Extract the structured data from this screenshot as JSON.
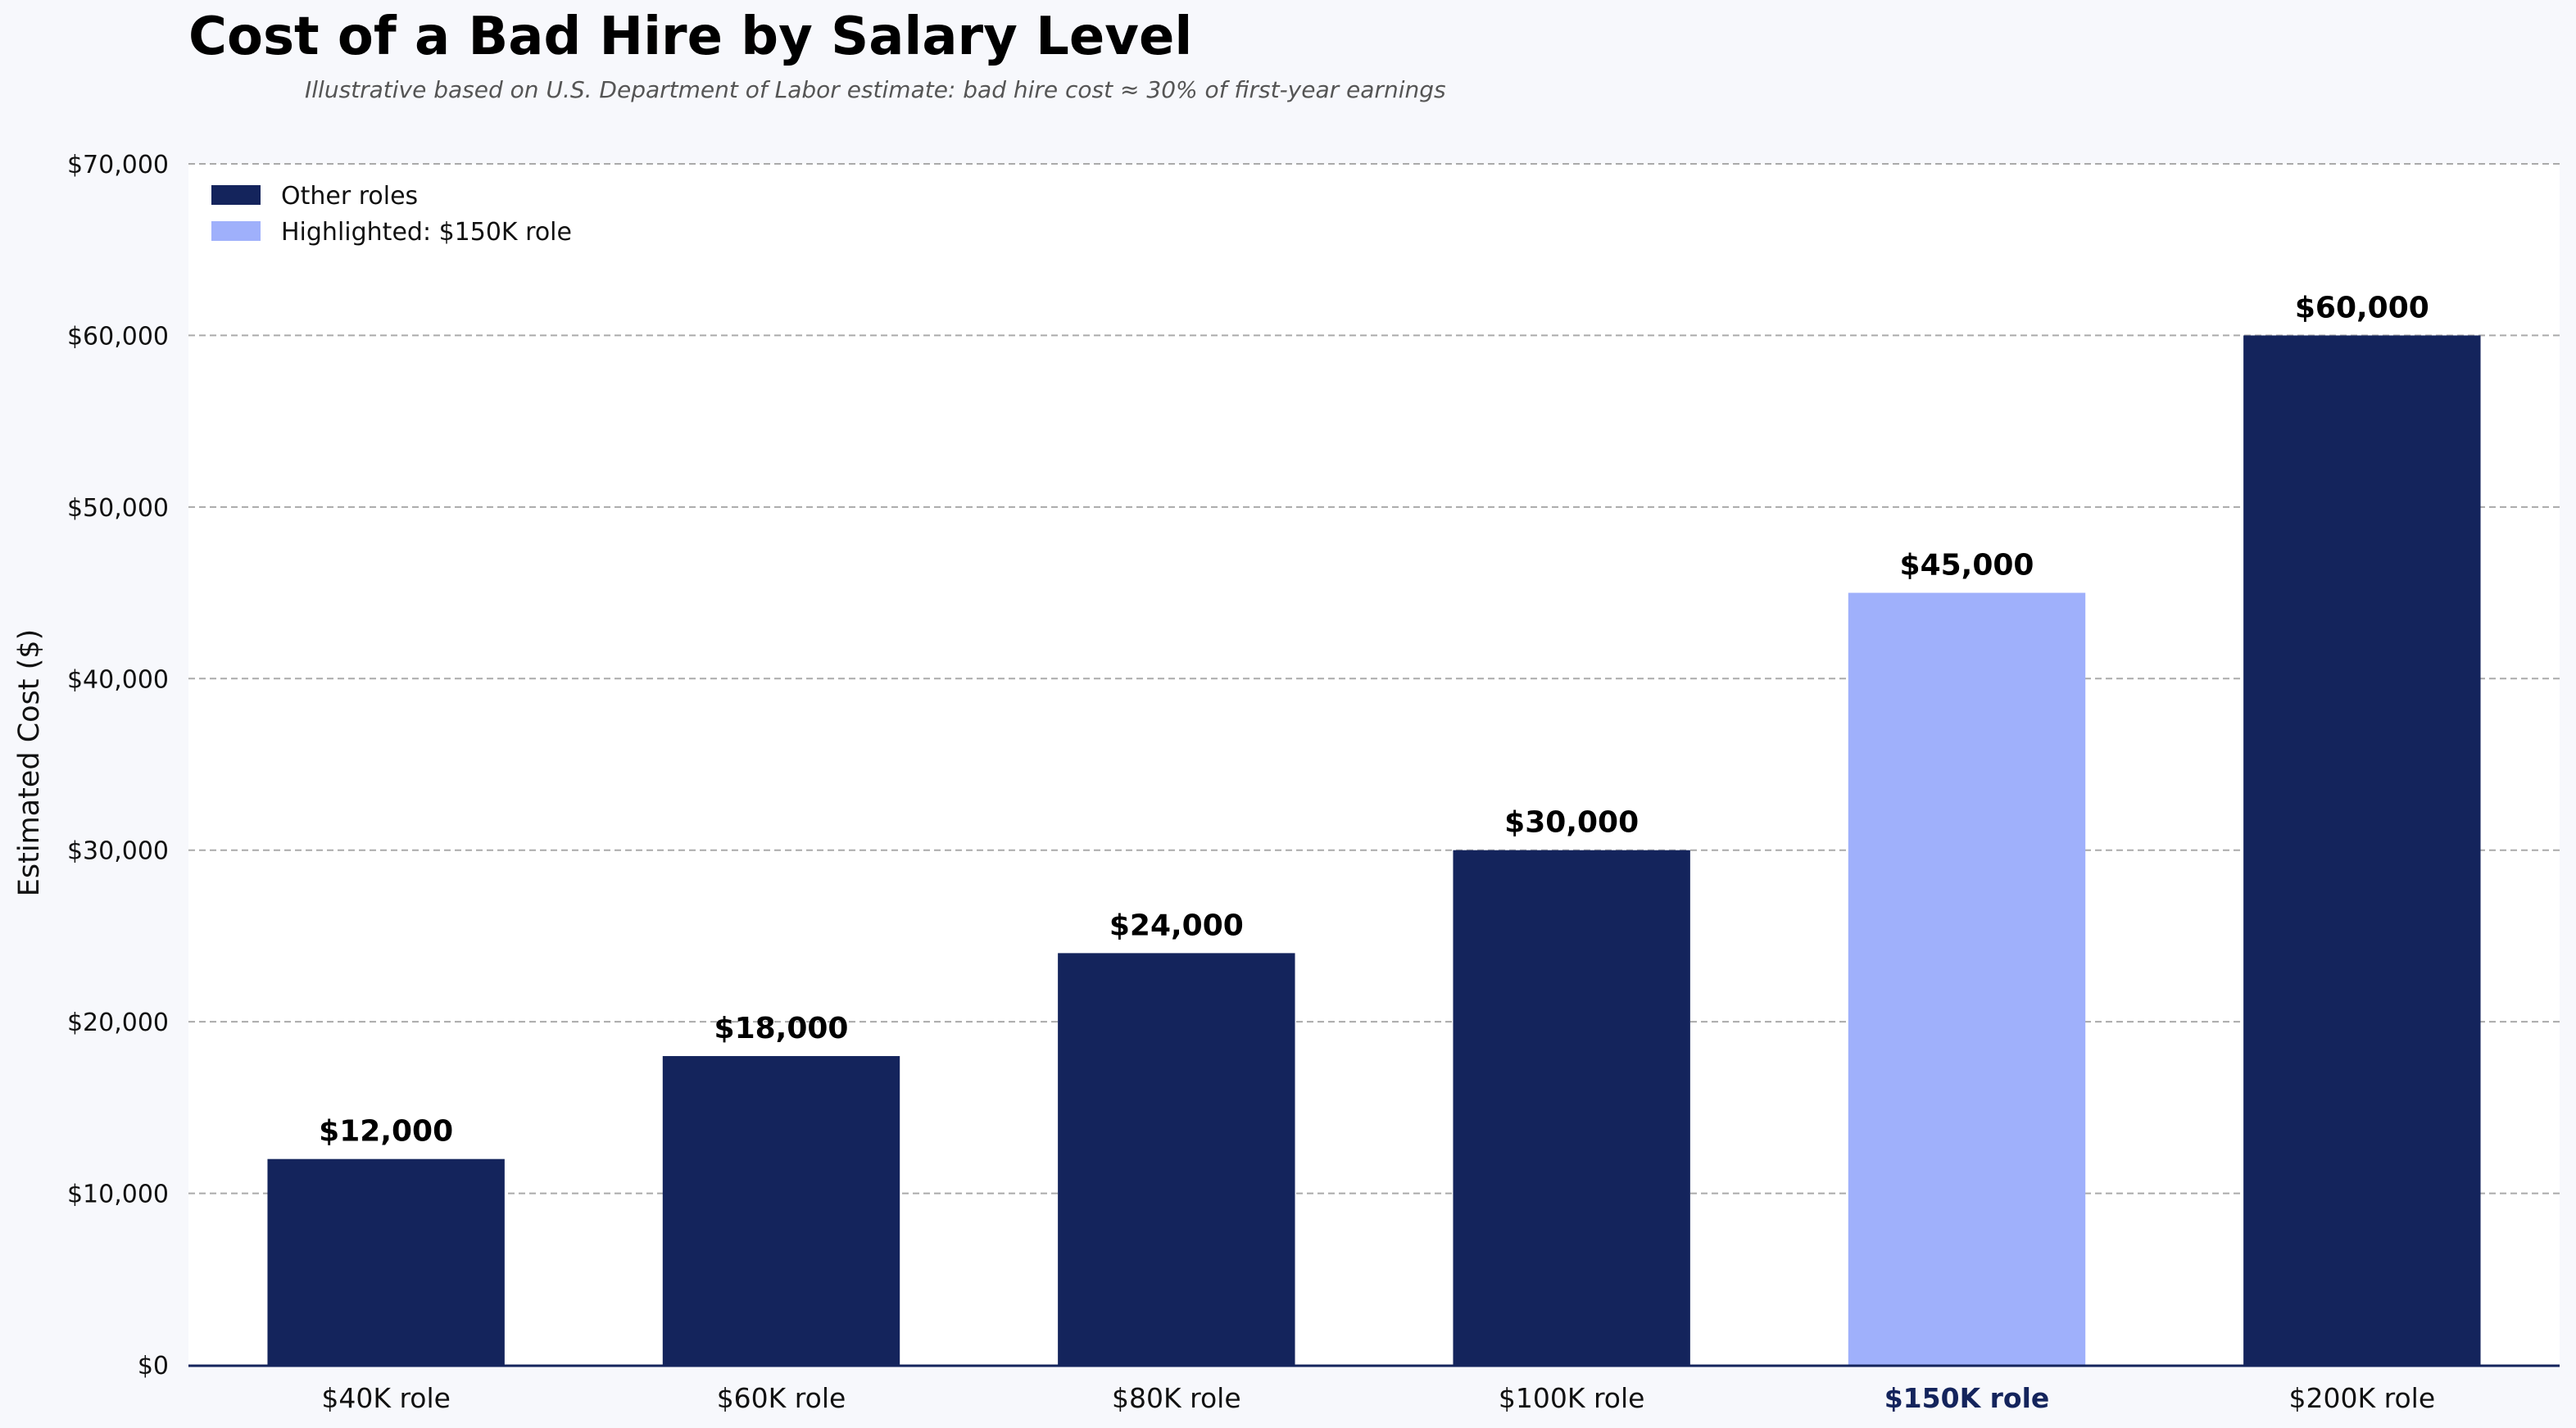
{
  "colors": {
    "page_background": "#f7f8fc",
    "plot_background": "#ffffff",
    "bar_default": "#14245c",
    "bar_highlight": "#9fb0fb",
    "grid": "#aaaaaa",
    "axis": "#14245c",
    "highlight_tick": "#14245c"
  },
  "chart_data": {
    "type": "bar",
    "title": "Cost of a Bad Hire by Salary Level",
    "subtitle": "Illustrative based on U.S. Department of Labor estimate: bad hire cost ≈ 30% of first-year earnings",
    "xlabel": "",
    "ylabel": "Estimated Cost ($)",
    "categories": [
      "$40K role",
      "$60K role",
      "$80K role",
      "$100K role",
      "$150K role",
      "$200K role"
    ],
    "values": [
      12000,
      18000,
      24000,
      30000,
      45000,
      60000
    ],
    "value_labels": [
      "$12,000",
      "$18,000",
      "$24,000",
      "$30,000",
      "$45,000",
      "$60,000"
    ],
    "highlight_index": 4,
    "ylim": [
      0,
      70000
    ],
    "yticks": [
      0,
      10000,
      20000,
      30000,
      40000,
      50000,
      60000,
      70000
    ],
    "ytick_labels": [
      "$0",
      "$10,000",
      "$20,000",
      "$30,000",
      "$40,000",
      "$50,000",
      "$60,000",
      "$70,000"
    ],
    "grid": true,
    "legend_position": "top-left",
    "legend": [
      {
        "label": "Other roles",
        "color": "#14245c"
      },
      {
        "label": "Highlighted: $150K role",
        "color": "#9fb0fb"
      }
    ]
  }
}
